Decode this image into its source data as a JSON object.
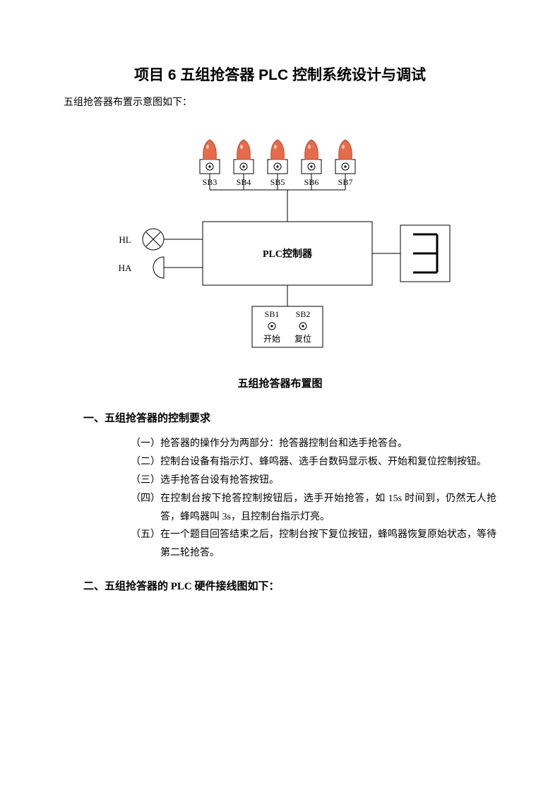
{
  "title": "项目 6 五组抢答器 PLC 控制系统设计与调试",
  "intro": "五组抢答器布置示意图如下：",
  "caption": "五组抢答器布置图",
  "section1": "一、五组抢答器的控制要求",
  "requirements": [
    {
      "n": "（一）",
      "t": "抢答器的操作分为两部分：抢答器控制台和选手抢答台。"
    },
    {
      "n": "（二）",
      "t": "控制台设备有指示灯、蜂鸣器、选手台数码显示板、开始和复位控制按钮。"
    },
    {
      "n": "（三）",
      "t": "选手抢答台设有抢答按钮。"
    },
    {
      "n": "（四）",
      "t": "在控制台按下抢答控制按钮后，选手开始抢答，如 15s 时间到，仍然无人抢答，蜂鸣器叫 3s，且控制台指示灯亮。"
    },
    {
      "n": "（五）",
      "t": "在一个题目回答结束之后，控制台按下复位按钮，蜂鸣器恢复原始状态，等待第二轮抢答。"
    }
  ],
  "section2": "二、五组抢答器的 PLC 硬件接线图如下：",
  "diagram": {
    "plc_label": "PLC控制器",
    "left_labels": {
      "hl": "HL",
      "ha": "HA"
    },
    "top_buttons": [
      "SB3",
      "SB4",
      "SB5",
      "SB6",
      "SB7"
    ],
    "bottom_buttons": [
      "SB1",
      "SB2"
    ],
    "bottom_texts": [
      "开始",
      "复位"
    ],
    "colors": {
      "lamp_fill": "#e56b4a",
      "lamp_dark": "#b94a2d",
      "stroke": "#000000",
      "bg": "#ffffff"
    }
  }
}
